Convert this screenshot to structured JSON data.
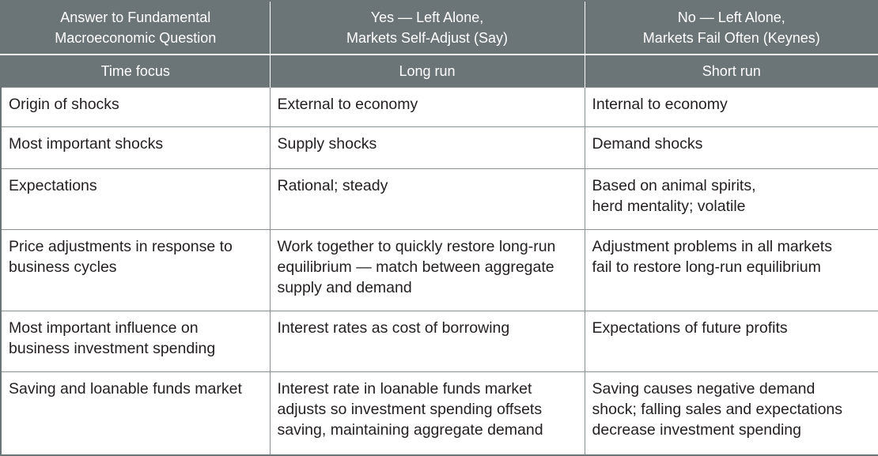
{
  "header": {
    "col1": "Answer to Fundamental\nMacroeconomic Question",
    "col2": "Yes — Left Alone,\nMarkets Self-Adjust (Say)",
    "col3": "No — Left Alone,\nMarkets Fail Often (Keynes)"
  },
  "subheader": {
    "col1": "Time focus",
    "col2": "Long run",
    "col3": "Short run"
  },
  "rows": [
    {
      "label": "Origin of shocks",
      "say": "External to economy",
      "keynes": "Internal to economy"
    },
    {
      "label": "Most important shocks",
      "say": "Supply shocks",
      "keynes": "Demand shocks"
    },
    {
      "label": "Expectations",
      "say": "Rational; steady",
      "keynes": "Based on animal spirits,\nherd mentality; volatile"
    },
    {
      "label": "Price adjustments in response to\nbusiness cycles",
      "say": "Work together to quickly restore long-run\nequilibrium — match between aggregate\nsupply and demand",
      "keynes": "Adjustment problems in all markets\nfail to restore long-run equilibrium"
    },
    {
      "label": "Most important influence on\nbusiness investment spending",
      "say": "Interest rates as cost of borrowing",
      "keynes": "Expectations of future profits"
    },
    {
      "label": "Saving and loanable funds market",
      "say": "Interest rate in loanable funds market\nadjusts so investment spending offsets\nsaving, maintaining aggregate demand",
      "keynes": "Saving causes negative demand\nshock; falling sales and expectations\ndecrease investment spending"
    }
  ]
}
